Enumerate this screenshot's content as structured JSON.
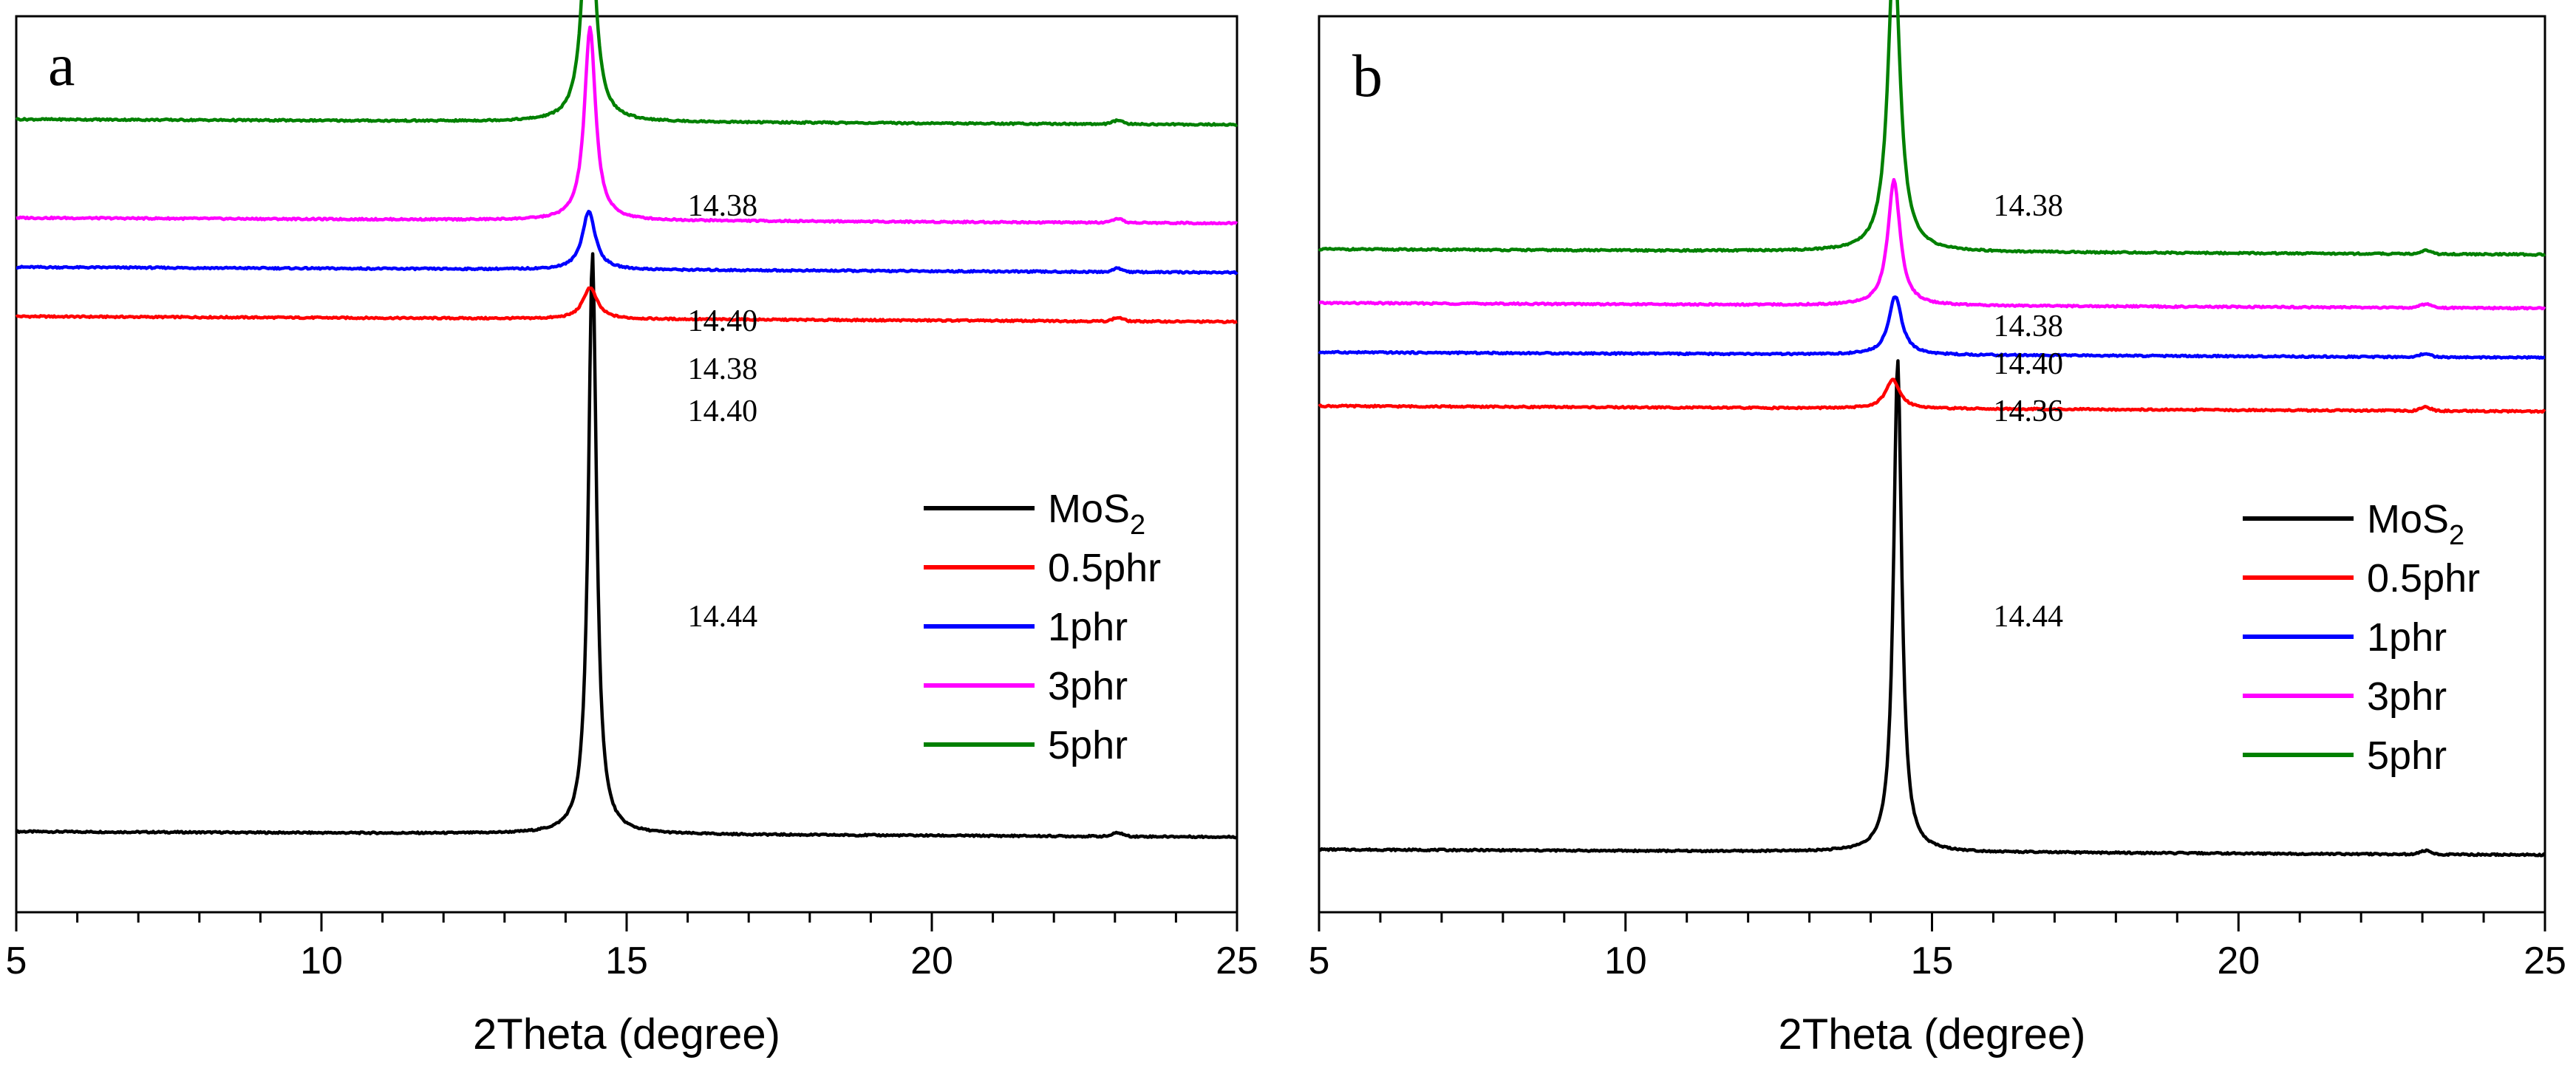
{
  "chart_data": [
    {
      "type": "line",
      "panel_label": "a",
      "xlabel": "2Theta (degree)",
      "ylabel": "",
      "xlim": [
        5,
        25
      ],
      "xticks": [
        "5",
        "10",
        "15",
        "20",
        "25"
      ],
      "legend_position": "center-right",
      "series": [
        {
          "name": "MoS",
          "subscript": "2",
          "color": "#000000",
          "baseline": 0.09,
          "peak_x": 14.44,
          "peak_height": 0.65,
          "width": 0.08,
          "annotation": "14.44"
        },
        {
          "name": "0.5phr",
          "color": "#ff0000",
          "baseline": 0.665,
          "peak_x": 14.4,
          "peak_height": 0.035,
          "width": 0.14,
          "annotation": "14.40"
        },
        {
          "name": "1phr",
          "color": "#0000ff",
          "baseline": 0.72,
          "peak_x": 14.38,
          "peak_height": 0.065,
          "width": 0.13,
          "annotation": "14.38"
        },
        {
          "name": "3phr",
          "color": "#ff00ff",
          "baseline": 0.775,
          "peak_x": 14.4,
          "peak_height": 0.215,
          "width": 0.11,
          "annotation": "14.40"
        },
        {
          "name": "5phr",
          "color": "#008000",
          "baseline": 0.885,
          "peak_x": 14.38,
          "peak_height": 0.3,
          "width": 0.11,
          "annotation": "14.38"
        }
      ]
    },
    {
      "type": "line",
      "panel_label": "b",
      "xlabel": "2Theta (degree)",
      "ylabel": "",
      "xlim": [
        5,
        25
      ],
      "xticks": [
        "5",
        "10",
        "15",
        "20",
        "25"
      ],
      "legend_position": "center-right",
      "series": [
        {
          "name": "MoS",
          "subscript": "2",
          "color": "#000000",
          "baseline": 0.07,
          "peak_x": 14.44,
          "peak_height": 0.55,
          "width": 0.08,
          "annotation": "14.44"
        },
        {
          "name": "0.5phr",
          "color": "#ff0000",
          "baseline": 0.565,
          "peak_x": 14.36,
          "peak_height": 0.032,
          "width": 0.14,
          "annotation": "14.36"
        },
        {
          "name": "1phr",
          "color": "#0000ff",
          "baseline": 0.625,
          "peak_x": 14.4,
          "peak_height": 0.065,
          "width": 0.13,
          "annotation": "14.40"
        },
        {
          "name": "3phr",
          "color": "#ff00ff",
          "baseline": 0.68,
          "peak_x": 14.38,
          "peak_height": 0.14,
          "width": 0.12,
          "annotation": "14.38"
        },
        {
          "name": "5phr",
          "color": "#008000",
          "baseline": 0.74,
          "peak_x": 14.38,
          "peak_height": 0.34,
          "width": 0.12,
          "annotation": "14.38"
        }
      ]
    }
  ]
}
